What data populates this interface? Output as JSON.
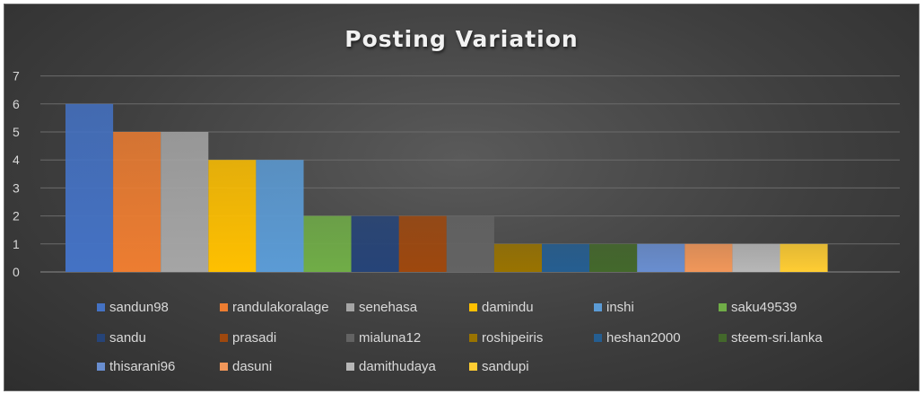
{
  "chart_data": {
    "type": "bar",
    "title": "Posting Variation",
    "xlabel": "",
    "ylabel": "",
    "ylim": [
      0,
      7
    ],
    "yticks": [
      0,
      1,
      2,
      3,
      4,
      5,
      6,
      7
    ],
    "grid": true,
    "legend_position": "bottom",
    "series": [
      {
        "name": "sandun98",
        "value": 6,
        "color": "#4472c4"
      },
      {
        "name": "randulakoralage",
        "value": 5,
        "color": "#ed7d31"
      },
      {
        "name": "senehasa",
        "value": 5,
        "color": "#a5a5a5"
      },
      {
        "name": "damindu",
        "value": 4,
        "color": "#ffc000"
      },
      {
        "name": "inshi",
        "value": 4,
        "color": "#5b9bd5"
      },
      {
        "name": "saku49539",
        "value": 2,
        "color": "#70ad47"
      },
      {
        "name": "sandu",
        "value": 2,
        "color": "#264478"
      },
      {
        "name": "prasadi",
        "value": 2,
        "color": "#9e480e"
      },
      {
        "name": "mialuna12",
        "value": 2,
        "color": "#636363"
      },
      {
        "name": "roshipeiris",
        "value": 1,
        "color": "#997300"
      },
      {
        "name": "heshan2000",
        "value": 1,
        "color": "#255e91"
      },
      {
        "name": "steem-sri.lanka",
        "value": 1,
        "color": "#43682b"
      },
      {
        "name": "thisarani96",
        "value": 1,
        "color": "#698ed0"
      },
      {
        "name": "dasuni",
        "value": 1,
        "color": "#f1975a"
      },
      {
        "name": "damithudaya",
        "value": 1,
        "color": "#b7b7b7"
      },
      {
        "name": "sandupi",
        "value": 1,
        "color": "#ffcd33"
      }
    ]
  },
  "colors": {
    "background_dark": "#3f3f3f",
    "text_light": "#d9d9d9",
    "gridline": "#6b6b6b"
  }
}
